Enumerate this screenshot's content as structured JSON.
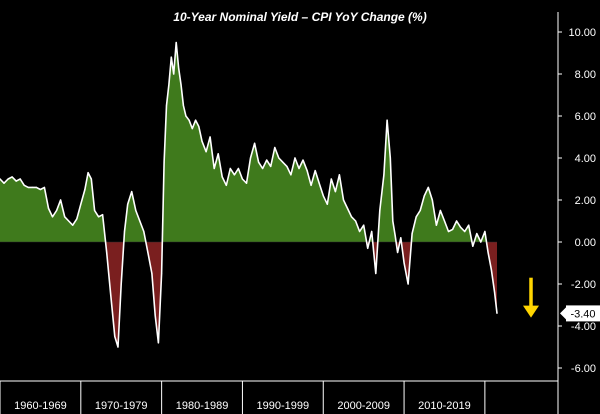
{
  "chart_data": {
    "type": "area",
    "title": "10-Year Nominal Yield – CPI YoY Change (%)",
    "xlabel": "",
    "ylabel": "",
    "ylim": [
      -6.0,
      10.0
    ],
    "yticks": [
      10.0,
      8.0,
      6.0,
      4.0,
      2.0,
      0.0,
      -2.0,
      -4.0,
      -6.0
    ],
    "ytick_labels": [
      "10.00",
      "8.00",
      "6.00",
      "4.00",
      "2.00",
      "0.00",
      "-2.00",
      "-4.00",
      "-6.00"
    ],
    "xlim": [
      1960,
      2021.8
    ],
    "categories": [
      "1960-1969",
      "1970-1979",
      "1980-1989",
      "1990-1999",
      "2000-2009",
      "2010-2019"
    ],
    "category_boundaries": [
      1960,
      1970,
      1980,
      1990,
      2000,
      2010,
      2020
    ],
    "grid": false,
    "last_value_label": "-3.40",
    "colors": {
      "background": "#000000",
      "line": "#ffffff",
      "positive_fill": "#3f7a1c",
      "negative_fill": "#7a1f1f",
      "arrow": "#ffd500",
      "axis_text": "#ffffff"
    },
    "series": [
      {
        "x": [
          1958.5,
          1959.0,
          1959.5,
          1960.0,
          1960.5,
          1961.0,
          1961.5,
          1962.0,
          1962.5,
          1963.0,
          1963.5,
          1964.0,
          1964.5,
          1965.0,
          1965.5,
          1966.0,
          1966.5,
          1967.0,
          1967.5,
          1968.0,
          1968.5,
          1969.0,
          1969.5,
          1970.0,
          1970.5,
          1970.9,
          1971.3,
          1971.7,
          1972.2,
          1972.7,
          1973.2,
          1973.7,
          1974.2,
          1974.6,
          1975.0,
          1975.4,
          1975.8,
          1976.3,
          1976.8,
          1977.3,
          1977.8,
          1978.3,
          1978.8,
          1979.2,
          1979.6,
          1980.0,
          1980.3,
          1980.6,
          1980.9,
          1981.2,
          1981.5,
          1981.8,
          1982.1,
          1982.4,
          1982.7,
          1983.0,
          1983.4,
          1983.8,
          1984.2,
          1984.6,
          1985.0,
          1985.5,
          1986.0,
          1986.5,
          1987.0,
          1987.5,
          1988.0,
          1988.5,
          1989.0,
          1989.5,
          1990.0,
          1990.5,
          1991.0,
          1991.5,
          1992.0,
          1992.5,
          1993.0,
          1993.5,
          1994.0,
          1994.5,
          1995.0,
          1995.5,
          1996.0,
          1996.5,
          1997.0,
          1997.5,
          1998.0,
          1998.5,
          1999.0,
          1999.5,
          2000.0,
          2000.5,
          2001.0,
          2001.5,
          2002.0,
          2002.5,
          2003.0,
          2003.5,
          2004.0,
          2004.5,
          2005.0,
          2005.5,
          2006.0,
          2006.5,
          2007.0,
          2007.5,
          2007.9,
          2008.3,
          2008.6,
          2008.9,
          2009.2,
          2009.6,
          2010.0,
          2010.5,
          2011.0,
          2011.5,
          2012.0,
          2012.5,
          2013.0,
          2013.5,
          2014.0,
          2014.5,
          2015.0,
          2015.5,
          2016.0,
          2016.5,
          2017.0,
          2017.5,
          2018.0,
          2018.5,
          2019.0,
          2019.5,
          2020.0,
          2020.4,
          2020.8,
          2021.2,
          2021.5
        ],
        "y": [
          2.6,
          2.8,
          2.9,
          3.0,
          2.8,
          3.0,
          3.1,
          2.9,
          3.0,
          2.7,
          2.6,
          2.6,
          2.6,
          2.5,
          2.6,
          1.6,
          1.2,
          1.5,
          2.0,
          1.2,
          1.0,
          0.8,
          1.1,
          1.8,
          2.5,
          3.3,
          3.0,
          1.5,
          1.2,
          1.3,
          -0.5,
          -2.5,
          -4.5,
          -5.0,
          -2.0,
          0.5,
          1.8,
          2.4,
          1.5,
          1.0,
          0.5,
          -0.5,
          -1.5,
          -3.5,
          -4.8,
          -1.5,
          3.8,
          6.5,
          7.5,
          8.8,
          8.0,
          9.5,
          8.3,
          7.5,
          6.5,
          6.0,
          5.8,
          5.4,
          5.8,
          5.5,
          4.8,
          4.3,
          5.0,
          3.5,
          4.2,
          3.1,
          2.7,
          3.5,
          3.2,
          3.5,
          3.0,
          2.8,
          4.0,
          4.7,
          3.8,
          3.5,
          3.9,
          3.6,
          4.5,
          4.0,
          3.8,
          3.6,
          3.2,
          4.0,
          3.5,
          3.9,
          3.4,
          2.7,
          3.4,
          2.8,
          2.2,
          1.8,
          3.0,
          2.4,
          3.2,
          2.0,
          1.6,
          1.2,
          1.0,
          0.5,
          0.8,
          -0.3,
          0.5,
          -1.5,
          1.5,
          3.2,
          5.8,
          4.0,
          1.0,
          0.3,
          -0.5,
          0.2,
          -1.0,
          -2.0,
          0.4,
          1.2,
          1.5,
          2.2,
          2.6,
          2.0,
          0.8,
          1.5,
          1.0,
          0.5,
          0.6,
          1.0,
          0.7,
          0.5,
          0.8,
          -0.2,
          0.4,
          0.0,
          0.5,
          -0.5,
          -1.3,
          -2.4,
          -3.4
        ]
      }
    ]
  }
}
